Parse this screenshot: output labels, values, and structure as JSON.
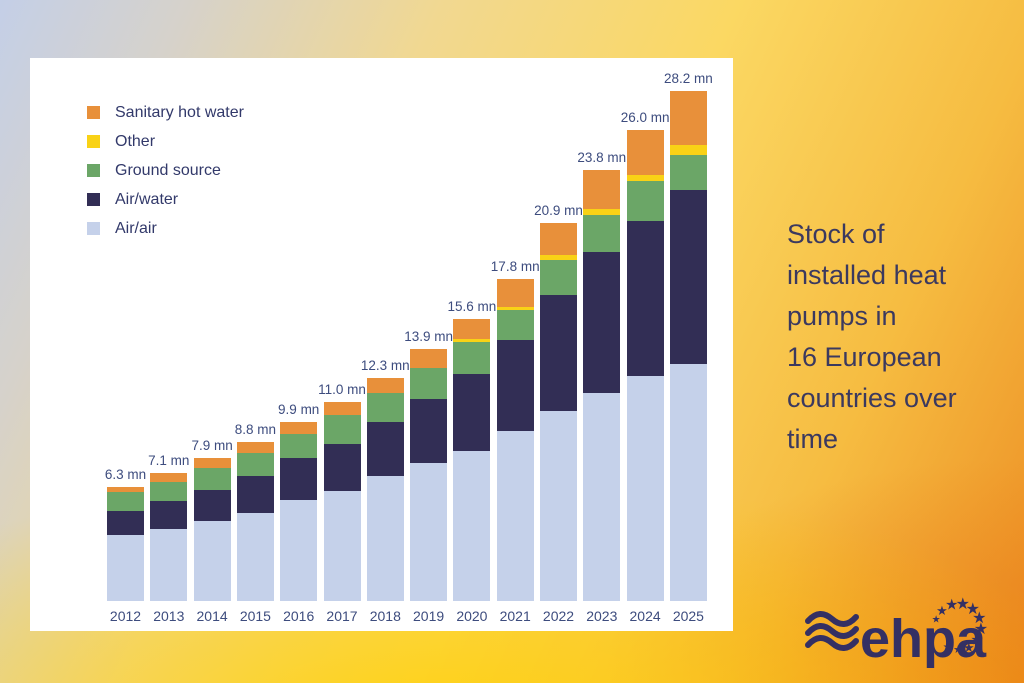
{
  "legend": {
    "items": [
      {
        "label": "Sanitary hot water",
        "color": "#e8903a"
      },
      {
        "label": "Other",
        "color": "#f9d216"
      },
      {
        "label": "Ground source",
        "color": "#6ba667"
      },
      {
        "label": "Air/water",
        "color": "#322e55"
      },
      {
        "label": "Air/air",
        "color": "#c5d1ea"
      }
    ]
  },
  "chart_data": {
    "type": "bar",
    "stacked": true,
    "title": "Stock of installed heat pumps in 16 European countries over time",
    "unit": "mn",
    "x": [
      "2012",
      "2013",
      "2014",
      "2015",
      "2016",
      "2017",
      "2018",
      "2019",
      "2020",
      "2021",
      "2022",
      "2023",
      "2024",
      "2025"
    ],
    "totals": [
      6.3,
      7.1,
      7.9,
      8.8,
      9.9,
      11.0,
      12.3,
      13.9,
      15.6,
      17.8,
      20.9,
      23.8,
      26.0,
      28.2
    ],
    "total_labels": [
      "6.3 mn",
      "7.1 mn",
      "7.9 mn",
      "8.8 mn",
      "9.9 mn",
      "11.0 mn",
      "12.3 mn",
      "13.9 mn",
      "15.6 mn",
      "17.8 mn",
      "20.9 mn",
      "23.8 mn",
      "26.0 mn",
      "28.2 mn"
    ],
    "series": [
      {
        "name": "Air/air",
        "color": "#c5d1ea",
        "values": [
          3.65,
          3.97,
          4.44,
          4.85,
          5.6,
          6.1,
          6.9,
          7.65,
          8.3,
          9.4,
          10.5,
          11.5,
          12.45,
          13.1
        ]
      },
      {
        "name": "Air/water",
        "color": "#322e55",
        "values": [
          1.35,
          1.57,
          1.68,
          2.07,
          2.3,
          2.6,
          3.0,
          3.5,
          4.25,
          5.0,
          6.4,
          7.8,
          8.55,
          9.6
        ]
      },
      {
        "name": "Ground source",
        "color": "#6ba667",
        "values": [
          1.0,
          1.06,
          1.23,
          1.28,
          1.35,
          1.57,
          1.6,
          1.75,
          1.75,
          1.7,
          1.95,
          2.05,
          2.2,
          1.95
        ]
      },
      {
        "name": "Other",
        "color": "#f9d216",
        "values": [
          0,
          0,
          0,
          0,
          0,
          0,
          0,
          0,
          0.15,
          0.15,
          0.27,
          0.33,
          0.32,
          0.55
        ]
      },
      {
        "name": "Sanitary hot water",
        "color": "#e8903a",
        "values": [
          0.3,
          0.5,
          0.55,
          0.6,
          0.65,
          0.73,
          0.8,
          1.0,
          1.15,
          1.55,
          1.78,
          2.12,
          2.48,
          3.0
        ]
      }
    ],
    "ylim": [
      0,
      30
    ],
    "grid": false,
    "axes_visible": false,
    "legend_position": "top-left"
  },
  "caption": {
    "text": "Stock of\ninstalled heat\npumps in\n16 European\ncountries over\ntime"
  },
  "logo": {
    "text": "ehpa"
  },
  "colors": {
    "background_top_left": "#c4cfe7",
    "background_yellow": "#fbd863",
    "background_orange": "#ec8c23",
    "card": "#ffffff",
    "caption_navy": "#3b395f",
    "label_navy": "#3d4c7e",
    "logo_navy": "#343063"
  }
}
